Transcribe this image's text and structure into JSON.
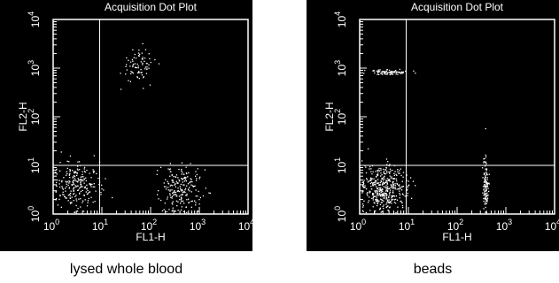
{
  "chart_data": [
    {
      "type": "scatter",
      "title": "Acquisition Dot Plot",
      "xlabel": "FL1-H",
      "ylabel": "FL2-H",
      "xscale": "log",
      "yscale": "log",
      "xlim": [
        1,
        10000
      ],
      "ylim": [
        1,
        10000
      ],
      "xticks": [
        {
          "b": "10",
          "e": "0"
        },
        {
          "b": "10",
          "e": "1"
        },
        {
          "b": "10",
          "e": "2"
        },
        {
          "b": "10",
          "e": "3"
        },
        {
          "b": "10",
          "e": "4"
        }
      ],
      "yticks": [
        {
          "b": "10",
          "e": "0"
        },
        {
          "b": "10",
          "e": "1"
        },
        {
          "b": "10",
          "e": "2"
        },
        {
          "b": "10",
          "e": "3"
        },
        {
          "b": "10",
          "e": "4"
        }
      ],
      "quadrant_gate": {
        "x": 9,
        "y": 10
      },
      "caption": "lysed whole blood",
      "clusters": [
        {
          "x": 55,
          "y": 1180,
          "sx": 0.18,
          "sy": 0.18,
          "n": 80
        },
        {
          "x": 3,
          "y": 4,
          "sx": 0.25,
          "sy": 0.22,
          "n": 230
        },
        {
          "x": 420,
          "y": 3.2,
          "sx": 0.22,
          "sy": 0.25,
          "n": 210
        }
      ],
      "point_color": "#ffffff"
    },
    {
      "type": "scatter",
      "title": "Acquisition Dot Plot",
      "xlabel": "FL1-H",
      "ylabel": "FL2-H",
      "xscale": "log",
      "yscale": "log",
      "xlim": [
        1,
        10000
      ],
      "ylim": [
        1,
        10000
      ],
      "xticks": [
        {
          "b": "10",
          "e": "0"
        },
        {
          "b": "10",
          "e": "1"
        },
        {
          "b": "10",
          "e": "2"
        },
        {
          "b": "10",
          "e": "3"
        },
        {
          "b": "10",
          "e": "4"
        }
      ],
      "yticks": [
        {
          "b": "10",
          "e": "0"
        },
        {
          "b": "10",
          "e": "1"
        },
        {
          "b": "10",
          "e": "2"
        },
        {
          "b": "10",
          "e": "3"
        },
        {
          "b": "10",
          "e": "4"
        }
      ],
      "quadrant_gate": {
        "x": 9,
        "y": 10
      },
      "caption": "beads",
      "clusters": [
        {
          "x": 3.8,
          "y": 850,
          "sx": 0.2,
          "sy": 0.03,
          "n": 90
        },
        {
          "x": 2.9,
          "y": 3.5,
          "sx": 0.24,
          "sy": 0.24,
          "n": 420
        },
        {
          "x": 380,
          "y": 3.8,
          "sx": 0.03,
          "sy": 0.3,
          "n": 120
        }
      ],
      "point_color": "#ffffff"
    }
  ]
}
